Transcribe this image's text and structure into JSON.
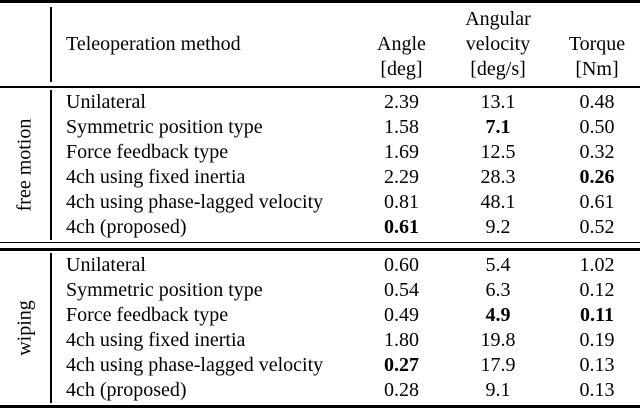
{
  "page": {
    "background": "#ffffff",
    "text_color": "#000000"
  },
  "table": {
    "header": {
      "method_label": "Teleoperation method",
      "columns": [
        {
          "lines": [
            "Angle",
            "[deg]"
          ]
        },
        {
          "lines": [
            "Angular",
            "velocity",
            "[deg/s]"
          ]
        },
        {
          "lines": [
            "Torque",
            "[Nm]"
          ]
        }
      ]
    },
    "groups": [
      {
        "label": "free motion",
        "rows": [
          {
            "method": "Unilateral",
            "values": [
              "2.39",
              "13.1",
              "0.48"
            ],
            "bold": [
              false,
              false,
              false
            ]
          },
          {
            "method": "Symmetric position type",
            "values": [
              "1.58",
              "7.1",
              "0.50"
            ],
            "bold": [
              false,
              true,
              false
            ]
          },
          {
            "method": "Force feedback type",
            "values": [
              "1.69",
              "12.5",
              "0.32"
            ],
            "bold": [
              false,
              false,
              false
            ]
          },
          {
            "method": "4ch using fixed inertia",
            "values": [
              "2.29",
              "28.3",
              "0.26"
            ],
            "bold": [
              false,
              false,
              true
            ]
          },
          {
            "method": "4ch using phase-lagged velocity",
            "values": [
              "0.81",
              "48.1",
              "0.61"
            ],
            "bold": [
              false,
              false,
              false
            ]
          },
          {
            "method": "4ch (proposed)",
            "values": [
              "0.61",
              "9.2",
              "0.52"
            ],
            "bold": [
              true,
              false,
              false
            ]
          }
        ]
      },
      {
        "label": "wiping",
        "rows": [
          {
            "method": "Unilateral",
            "values": [
              "0.60",
              "5.4",
              "1.02"
            ],
            "bold": [
              false,
              false,
              false
            ]
          },
          {
            "method": "Symmetric position type",
            "values": [
              "0.54",
              "6.3",
              "0.12"
            ],
            "bold": [
              false,
              false,
              false
            ]
          },
          {
            "method": "Force feedback type",
            "values": [
              "0.49",
              "4.9",
              "0.11"
            ],
            "bold": [
              false,
              true,
              true
            ]
          },
          {
            "method": "4ch using fixed inertia",
            "values": [
              "1.80",
              "19.8",
              "0.19"
            ],
            "bold": [
              false,
              false,
              false
            ]
          },
          {
            "method": "4ch using phase-lagged velocity",
            "values": [
              "0.27",
              "17.9",
              "0.13"
            ],
            "bold": [
              true,
              false,
              false
            ]
          },
          {
            "method": "4ch (proposed)",
            "values": [
              "0.28",
              "9.1",
              "0.13"
            ],
            "bold": [
              false,
              false,
              false
            ]
          }
        ]
      }
    ]
  }
}
